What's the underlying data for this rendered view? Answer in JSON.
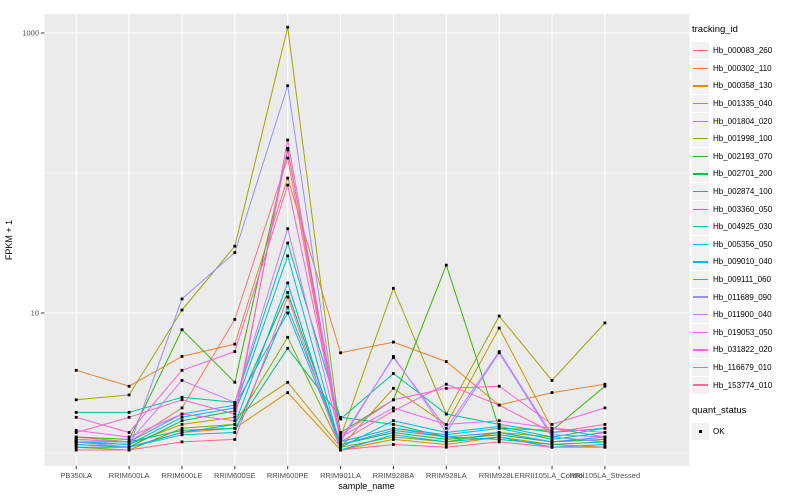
{
  "figure": {
    "background": "#FFFFFF",
    "panel_background": "#EBEBEB",
    "grid_color": "#FFFFFF",
    "tick_color": "#333333",
    "tick_label_color": "#4D4D4D",
    "point_color": "#000000"
  },
  "chart_data": {
    "type": "line",
    "title": "",
    "xlabel": "sample_name",
    "ylabel": "FPKM + 1",
    "y_scale": "log10",
    "grid": true,
    "legend_position": "right",
    "y_ticks": [
      {
        "label": "1000",
        "value": 1000
      },
      {
        "label": "10",
        "value": 10
      }
    ],
    "y_minor": [
      100,
      1
    ],
    "categories": [
      "PB350LA",
      "RRIM600LA",
      "RRIM600LE",
      "RRIM600SE",
      "RRIM600PE",
      "RRIM901LA",
      "RRIM928BA",
      "RRIM928LA",
      "RRIM928LE",
      "RRII105LA_Control",
      "RRII105LA_Stressed"
    ],
    "series": [
      {
        "name": "Hb_000083_260",
        "color": "#F8766D",
        "values": [
          1.3,
          1.2,
          2.1,
          9.0,
          128,
          1.2,
          1.5,
          1.3,
          1.4,
          1.2,
          1.3
        ]
      },
      {
        "name": "Hb_000302_110",
        "color": "#EA8331",
        "values": [
          3.9,
          3.0,
          4.9,
          6.0,
          92,
          5.2,
          6.2,
          4.5,
          2.2,
          2.7,
          3.1
        ]
      },
      {
        "name": "Hb_000358_130",
        "color": "#D89000",
        "values": [
          1.15,
          1.1,
          1.4,
          1.5,
          2.7,
          1.05,
          1.25,
          1.15,
          1.3,
          1.15,
          1.1
        ]
      },
      {
        "name": "Hb_001335_040",
        "color": "#C09B00",
        "values": [
          1.2,
          1.15,
          1.6,
          1.8,
          3.2,
          1.1,
          2.9,
          1.6,
          7.8,
          1.5,
          1.3
        ]
      },
      {
        "name": "Hb_001804_020",
        "color": "#A3A500",
        "values": [
          2.4,
          2.6,
          10.5,
          30,
          1100,
          1.3,
          15,
          1.9,
          9.5,
          3.3,
          8.5
        ]
      },
      {
        "name": "Hb_001998_100",
        "color": "#7CAE00",
        "values": [
          1.1,
          1.05,
          1.5,
          1.6,
          6.7,
          1.1,
          1.3,
          1.2,
          1.4,
          1.3,
          1.2
        ]
      },
      {
        "name": "Hb_002193_070",
        "color": "#39B600",
        "values": [
          1.3,
          1.25,
          7.6,
          3.2,
          146,
          1.4,
          2.4,
          22,
          1.5,
          1.45,
          3.0
        ]
      },
      {
        "name": "Hb_002701_200",
        "color": "#00BB4E",
        "values": [
          1.2,
          1.1,
          1.7,
          2.0,
          14,
          1.15,
          1.4,
          1.25,
          1.35,
          1.2,
          1.25
        ]
      },
      {
        "name": "Hb_002874_100",
        "color": "#00BF7D",
        "values": [
          1.25,
          1.2,
          1.45,
          1.5,
          5.6,
          1.8,
          1.6,
          1.3,
          1.25,
          1.15,
          1.2
        ]
      },
      {
        "name": "Hb_003360_050",
        "color": "#00C1A3",
        "values": [
          1.95,
          1.95,
          2.5,
          2.3,
          31.6,
          1.75,
          3.7,
          1.9,
          1.6,
          1.4,
          1.5
        ]
      },
      {
        "name": "Hb_004925_030",
        "color": "#00BFC4",
        "values": [
          1.15,
          1.1,
          1.35,
          1.4,
          11,
          1.2,
          1.5,
          1.35,
          1.5,
          1.25,
          1.4
        ]
      },
      {
        "name": "Hb_005356_050",
        "color": "#00BAE0",
        "values": [
          1.2,
          1.15,
          1.8,
          2.1,
          25.6,
          1.1,
          1.7,
          1.4,
          1.55,
          1.3,
          1.5
        ]
      },
      {
        "name": "Hb_009010_040",
        "color": "#00B0F6",
        "values": [
          1.1,
          1.1,
          1.4,
          1.6,
          16.4,
          1.05,
          1.35,
          1.2,
          1.3,
          1.1,
          1.15
        ]
      },
      {
        "name": "Hb_009111_060",
        "color": "#35A2FF",
        "values": [
          1.2,
          1.2,
          1.9,
          2.2,
          10,
          1.15,
          1.45,
          1.3,
          1.4,
          1.2,
          1.3
        ]
      },
      {
        "name": "Hb_011689_090",
        "color": "#9590FF",
        "values": [
          1.2,
          1.1,
          12.6,
          27,
          420,
          1.2,
          4.9,
          1.4,
          5.2,
          1.3,
          1.2
        ]
      },
      {
        "name": "Hb_011900_040",
        "color": "#C77CFF",
        "values": [
          1.25,
          1.2,
          3.3,
          2.3,
          40,
          1.25,
          4.8,
          1.5,
          5.3,
          1.35,
          1.3
        ]
      },
      {
        "name": "Hb_019053_050",
        "color": "#E76BF3",
        "values": [
          1.45,
          1.3,
          1.9,
          1.7,
          172,
          1.3,
          2.1,
          1.6,
          1.7,
          1.5,
          1.4
        ]
      },
      {
        "name": "Hb_031822_020",
        "color": "#FA62DB",
        "values": [
          1.8,
          1.4,
          3.9,
          5.3,
          82,
          1.35,
          2.4,
          2.9,
          3.0,
          1.6,
          2.1
        ]
      },
      {
        "name": "Hb_116679_010",
        "color": "#FF62BC",
        "values": [
          1.4,
          1.8,
          2.4,
          1.9,
          150,
          1.2,
          2.0,
          3.1,
          2.2,
          1.4,
          1.6
        ]
      },
      {
        "name": "Hb_153774_010",
        "color": "#FF6A98",
        "values": [
          1.05,
          1.05,
          1.2,
          1.25,
          13,
          1.05,
          1.15,
          1.1,
          1.2,
          1.1,
          1.1
        ]
      }
    ],
    "legend": {
      "tracking_title": "tracking_id",
      "quant_title": "quant_status",
      "quant_label": "OK"
    }
  }
}
